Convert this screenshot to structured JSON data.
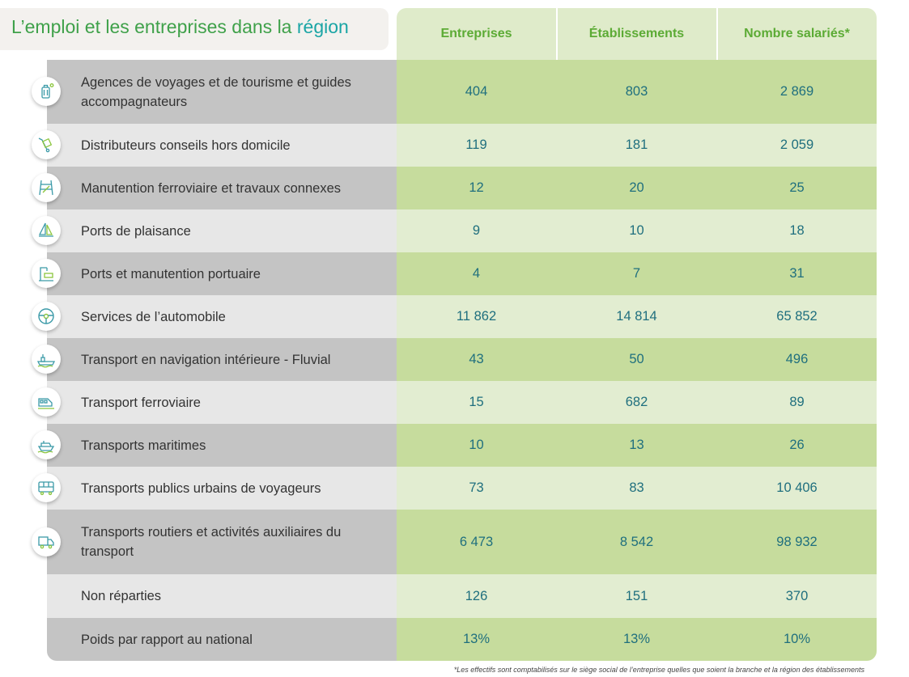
{
  "title_part1": "L’emploi et les entreprises dans la ",
  "title_part2": "région",
  "headers": [
    "Entreprises",
    "Établissements",
    "Nombre salariés*"
  ],
  "rows": [
    {
      "label": "Agences de voyages et de tourisme et guides accompagnateurs",
      "values": [
        "404",
        "803",
        "2 869"
      ],
      "icon": "luggage-icon"
    },
    {
      "label": "Distributeurs conseils hors domicile",
      "values": [
        "119",
        "181",
        "2 059"
      ],
      "icon": "hand-truck-icon"
    },
    {
      "label": "Manutention ferroviaire et travaux connexes",
      "values": [
        "12",
        "20",
        "25"
      ],
      "icon": "rail-tools-icon"
    },
    {
      "label": "Ports de plaisance",
      "values": [
        "9",
        "10",
        "18"
      ],
      "icon": "sailboat-icon"
    },
    {
      "label": "Ports et manutention portuaire",
      "values": [
        "4",
        "7",
        "31"
      ],
      "icon": "port-crane-icon"
    },
    {
      "label": "Services de l’automobile",
      "values": [
        "11 862",
        "14 814",
        "65 852"
      ],
      "icon": "steering-wheel-icon"
    },
    {
      "label": "Transport en navigation intérieure - Fluvial",
      "values": [
        "43",
        "50",
        "496"
      ],
      "icon": "barge-icon"
    },
    {
      "label": "Transport ferroviaire",
      "values": [
        "15",
        "682",
        "89"
      ],
      "icon": "train-icon"
    },
    {
      "label": "Transports maritimes",
      "values": [
        "10",
        "13",
        "26"
      ],
      "icon": "ship-icon"
    },
    {
      "label": "Transports publics urbains de voyageurs",
      "values": [
        "73",
        "83",
        "10 406"
      ],
      "icon": "bus-icon"
    },
    {
      "label": "Transports routiers et activités auxiliaires du transport",
      "values": [
        "6 473",
        "8 542",
        "98 932"
      ],
      "icon": "truck-icon"
    },
    {
      "label": "Non réparties",
      "values": [
        "126",
        "151",
        "370"
      ]
    },
    {
      "label": "Poids par rapport au national",
      "values": [
        "13%",
        "13%",
        "10%"
      ]
    }
  ],
  "footnote": "*Les effectifs sont comptabilisés sur le siège social de l’entreprise quelles que soient la branche et la région des établissements",
  "colors": {
    "title_green": "#3fa14a",
    "title_teal": "#1aa5a5",
    "header_text": "#5cab35",
    "value_text": "#1f6f7e",
    "row_label_dark": "#c4c4c4",
    "row_label_light": "#e7e7e7",
    "row_value_dark": "#c6dc9d",
    "row_value_light": "#e2edd1"
  }
}
